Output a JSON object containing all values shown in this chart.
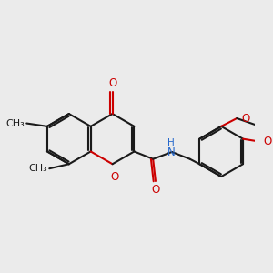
{
  "bg_color": "#ebebeb",
  "bond_color": "#1a1a1a",
  "oxygen_color": "#cc0000",
  "nitrogen_color": "#2266cc",
  "lw": 1.5,
  "fs": 8.5,
  "dbo": 0.042,
  "shorten": 0.028,
  "xlim": [
    0.0,
    5.2
  ],
  "ylim": [
    0.5,
    3.8
  ]
}
